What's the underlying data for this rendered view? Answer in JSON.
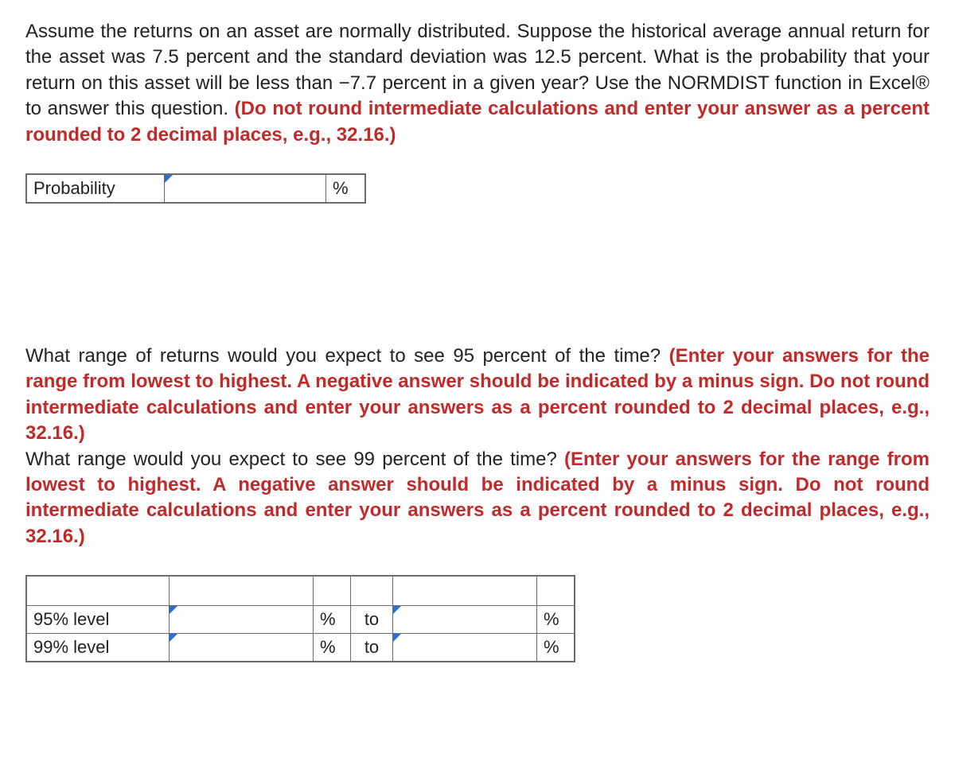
{
  "question1": {
    "text_prefix": "Assume the returns on an asset are normally distributed. Suppose the historical average annual return for the asset was 7.5 percent and the standard deviation was 12.5 percent. What is the probability that your return on this asset will be less than −7.7 percent in a given year? Use the NORMDIST function in Excel® to answer this question. ",
    "text_red": "(Do not round intermediate calculations and enter your answer as a percent rounded to 2 decimal places, e.g., 32.16.)"
  },
  "prob_table": {
    "label": "Probability",
    "unit": "%"
  },
  "question2": {
    "part1_prefix": "What range of returns would you expect to see 95 percent of the time? ",
    "part1_red": "(Enter your answers for the range from lowest to highest. A negative answer should be indicated by a minus sign. Do not round intermediate calculations and enter your answers as a percent rounded to 2 decimal places, e.g., 32.16.)",
    "part2_prefix": "What range would you expect to see 99 percent of the time? ",
    "part2_red": "(Enter your answers for the range from lowest to highest. A negative answer should be indicated by a minus sign. Do not round intermediate calculations and enter your answers as a percent rounded to 2 decimal places, e.g., 32.16.)"
  },
  "range_table": {
    "row1_label": "95% level",
    "row2_label": "99% level",
    "unit": "%",
    "to": "to"
  }
}
